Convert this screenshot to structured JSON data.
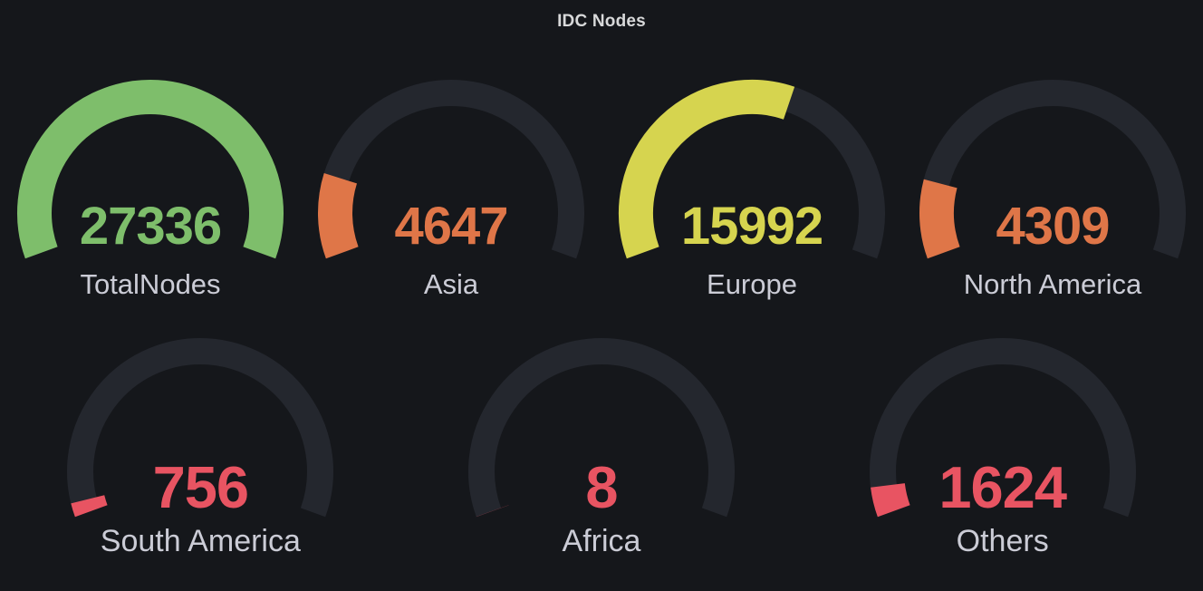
{
  "title": "IDC Nodes",
  "colors": {
    "background": "#15171B",
    "track": "#24272E",
    "green": "#7EBE6B",
    "orange": "#DF7648",
    "yellow": "#D6D44F",
    "red": "#E85462",
    "label_text": "#CBCCD6",
    "title_text": "#D8D9DA"
  },
  "chart_data": {
    "type": "gauge",
    "title": "IDC Nodes",
    "max": 27336,
    "arc": {
      "start_angle": 200,
      "end_angle": -20
    },
    "legend_position": "none",
    "gauges": [
      {
        "label": "TotalNodes",
        "value": 27336,
        "color": "#7EBE6B",
        "row": 1
      },
      {
        "label": "Asia",
        "value": 4647,
        "color": "#DF7648",
        "row": 1
      },
      {
        "label": "Europe",
        "value": 15992,
        "color": "#D6D44F",
        "row": 1
      },
      {
        "label": "North America",
        "value": 4309,
        "color": "#DF7648",
        "row": 1
      },
      {
        "label": "South America",
        "value": 756,
        "color": "#E85462",
        "row": 2
      },
      {
        "label": "Africa",
        "value": 8,
        "color": "#E85462",
        "row": 2
      },
      {
        "label": "Others",
        "value": 1624,
        "color": "#E85462",
        "row": 2
      }
    ]
  }
}
